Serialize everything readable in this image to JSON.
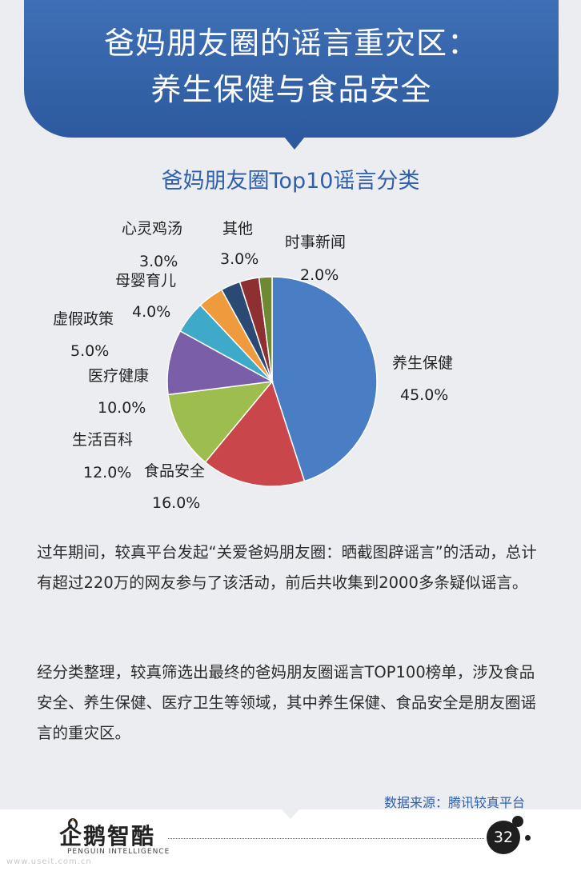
{
  "header": {
    "title_line1": "爸妈朋友圈的谣言重灾区：",
    "title_line2": "养生保健与食品安全"
  },
  "chart_data": {
    "type": "pie",
    "title": "爸妈朋友圈Top10谣言分类",
    "slices": [
      {
        "label": "养生保健",
        "value": 45.0,
        "display": "45.0%",
        "color": "#4a7ec4"
      },
      {
        "label": "食品安全",
        "value": 16.0,
        "display": "16.0%",
        "color": "#c9474a"
      },
      {
        "label": "生活百科",
        "value": 12.0,
        "display": "12.0%",
        "color": "#9dbd4e"
      },
      {
        "label": "医疗健康",
        "value": 10.0,
        "display": "10.0%",
        "color": "#7b5ea8"
      },
      {
        "label": "虚假政策",
        "value": 5.0,
        "display": "5.0%",
        "color": "#3fa9c9"
      },
      {
        "label": "母婴育儿",
        "value": 4.0,
        "display": "4.0%",
        "color": "#f09a3e"
      },
      {
        "label": "心灵鸡汤",
        "value": 3.0,
        "display": "3.0%",
        "color": "#2a4a74"
      },
      {
        "label": "其他",
        "value": 3.0,
        "display": "3.0%",
        "color": "#8e2f31"
      },
      {
        "label": "时事新闻",
        "value": 2.0,
        "display": "2.0%",
        "color": "#6d8a33"
      }
    ]
  },
  "body": {
    "para1": "过年期间，较真平台发起“关爱爸妈朋友圈：晒截图辟谣言”的活动，总计有超过220万的网友参与了该活动，前后共收集到2000多条疑似谣言。",
    "para2": "经分类整理，较真筛选出最终的爸妈朋友圈谣言TOP100榜单，涉及食品安全、养生保健、医疗卫生等领域，其中养生保健、食品安全是朋友圈谣言的重灾区。",
    "source": "数据来源：腾讯较真平台"
  },
  "footer": {
    "logo_cn": "企鹅智酷",
    "logo_en": "PENGUIN INTELLIGENCE",
    "page_number": "32",
    "watermark": "www.useit.com.cn"
  }
}
